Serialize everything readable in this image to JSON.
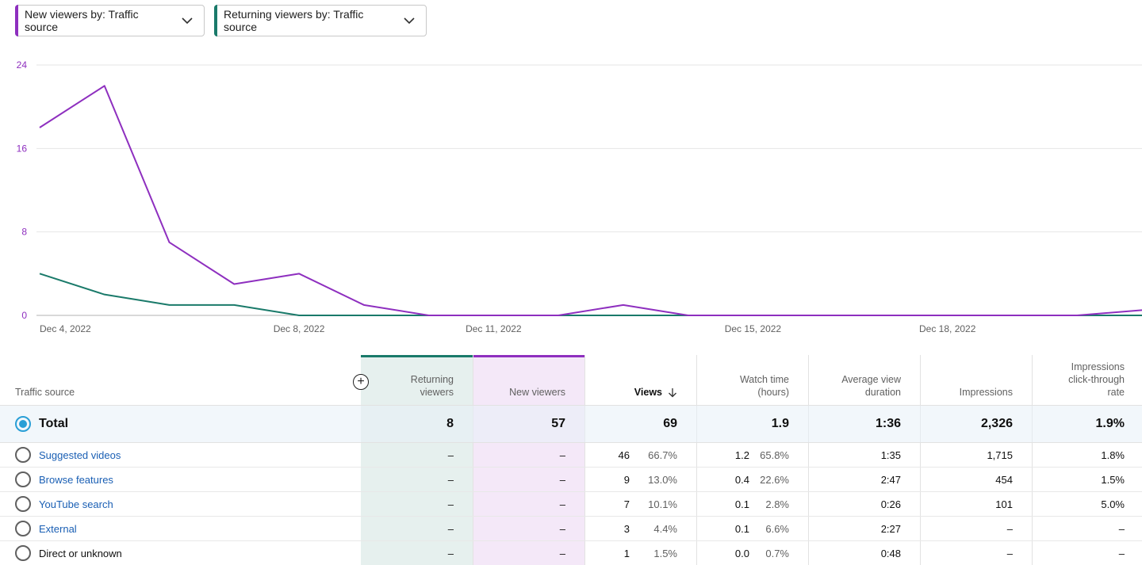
{
  "selectors": [
    {
      "label": "New viewers by: Traffic source",
      "color": "#8e2fbf"
    },
    {
      "label": "Returning viewers by: Traffic source",
      "color": "#1a7a6a"
    }
  ],
  "chart_data": {
    "type": "line",
    "x": [
      "Dec 4, 2022",
      "Dec 5, 2022",
      "Dec 6, 2022",
      "Dec 7, 2022",
      "Dec 8, 2022",
      "Dec 9, 2022",
      "Dec 10, 2022",
      "Dec 11, 2022",
      "Dec 12, 2022",
      "Dec 13, 2022",
      "Dec 14, 2022",
      "Dec 15, 2022",
      "Dec 16, 2022",
      "Dec 17, 2022",
      "Dec 18, 2022",
      "Dec 19, 2022",
      "Dec 20, 2022",
      "Dec 21, 2022"
    ],
    "xticks": [
      "Dec 4, 2022",
      "Dec 8, 2022",
      "Dec 11, 2022",
      "Dec 15, 2022",
      "Dec 18, 2022"
    ],
    "yticks": [
      0,
      8,
      16,
      24
    ],
    "ylim": [
      0,
      24
    ],
    "grid": true,
    "series": [
      {
        "name": "New viewers",
        "color": "#8e2fbf",
        "values": [
          18,
          22,
          7,
          3,
          4,
          1,
          0,
          0,
          0,
          1,
          0,
          0,
          0,
          0,
          0,
          0,
          0,
          0.5
        ]
      },
      {
        "name": "Returning viewers",
        "color": "#1a7a6a",
        "values": [
          4,
          2,
          1,
          1,
          0,
          0,
          0,
          0,
          0,
          0,
          0,
          0,
          0,
          0,
          0,
          0,
          0,
          0
        ]
      }
    ]
  },
  "table": {
    "headers": {
      "source": "Traffic source",
      "returning_1": "Returning",
      "returning_2": "viewers",
      "new": "New viewers",
      "views": "Views",
      "watch_1": "Watch time",
      "watch_2": "(hours)",
      "avg_1": "Average view",
      "avg_2": "duration",
      "impressions": "Impressions",
      "ctr_1": "Impressions",
      "ctr_2": "click-through",
      "ctr_3": "rate"
    },
    "add_symbol": "+",
    "sort_icon": "arrow-down-icon",
    "total": {
      "label": "Total",
      "returning": "8",
      "new": "57",
      "views": "69",
      "watch": "1.9",
      "avg": "1:36",
      "impressions": "2,326",
      "ctr": "1.9%"
    },
    "rows": [
      {
        "label": "Suggested videos",
        "link": true,
        "returning": "–",
        "new": "–",
        "views": "46",
        "views_pct": "66.7%",
        "watch": "1.2",
        "watch_pct": "65.8%",
        "avg": "1:35",
        "impressions": "1,715",
        "ctr": "1.8%"
      },
      {
        "label": "Browse features",
        "link": true,
        "returning": "–",
        "new": "–",
        "views": "9",
        "views_pct": "13.0%",
        "watch": "0.4",
        "watch_pct": "22.6%",
        "avg": "2:47",
        "impressions": "454",
        "ctr": "1.5%"
      },
      {
        "label": "YouTube search",
        "link": true,
        "returning": "–",
        "new": "–",
        "views": "7",
        "views_pct": "10.1%",
        "watch": "0.1",
        "watch_pct": "2.8%",
        "avg": "0:26",
        "impressions": "101",
        "ctr": "5.0%"
      },
      {
        "label": "External",
        "link": true,
        "returning": "–",
        "new": "–",
        "views": "3",
        "views_pct": "4.4%",
        "watch": "0.1",
        "watch_pct": "6.6%",
        "avg": "2:27",
        "impressions": "–",
        "ctr": "–"
      },
      {
        "label": "Direct or unknown",
        "link": false,
        "returning": "–",
        "new": "–",
        "views": "1",
        "views_pct": "1.5%",
        "watch": "0.0",
        "watch_pct": "0.7%",
        "avg": "0:48",
        "impressions": "–",
        "ctr": "–"
      }
    ]
  }
}
